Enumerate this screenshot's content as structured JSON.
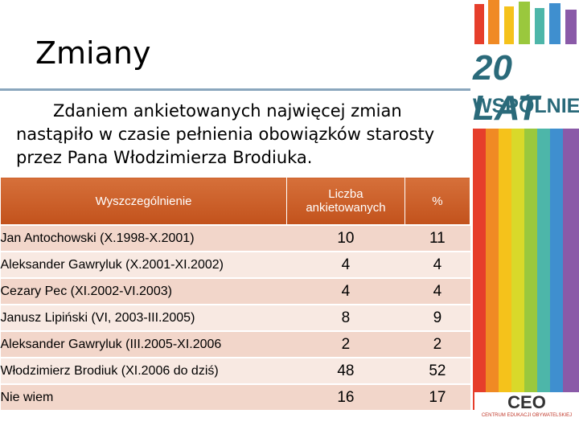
{
  "slide": {
    "title": "Zmiany",
    "paragraph": "Zdaniem ankietowanych najwięcej zmian nastąpiło w czasie pełnienia obowiązków starosty przez Pana Włodzimierza Brodiuka."
  },
  "table": {
    "header": [
      "Wyszczególnienie",
      "Liczba ankietowanych",
      "%"
    ],
    "rows": [
      [
        "Jan Antochowski  (X.1998-X.2001)",
        "10",
        "11"
      ],
      [
        "Aleksander Gawryluk (X.2001-XI.2002)",
        "4",
        "4"
      ],
      [
        "Cezary Pec (XI.2002-VI.2003)",
        "4",
        "4"
      ],
      [
        "Janusz Lipiński (VI, 2003-III.2005)",
        "8",
        "9"
      ],
      [
        "Aleksander Gawryluk (III.2005-XI.2006",
        "2",
        "2"
      ],
      [
        "Włodzimierz Brodiuk (XI.2006 do dziś)",
        "48",
        "52"
      ],
      [
        "Nie wiem",
        "16",
        "17"
      ]
    ]
  },
  "logo": {
    "line1": "20 LAT",
    "line2": "WSPÓLNIE"
  },
  "footer_logo": {
    "name": "CEO",
    "subtitle": "CENTRUM EDUKACJI OBYWATELSKIEJ"
  }
}
